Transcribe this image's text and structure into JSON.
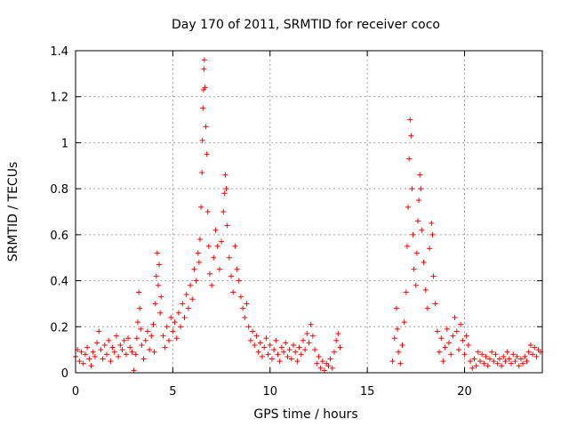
{
  "chart_data": {
    "type": "scatter",
    "title": "Day 170 of 2011, SRMTID for receiver coco",
    "xlabel": "GPS time / hours",
    "ylabel": "SRMTID / TECUs",
    "xlim": [
      0,
      24
    ],
    "ylim": [
      0,
      1.4
    ],
    "x_ticks": [
      0,
      5,
      10,
      15,
      20
    ],
    "x_tick_labels": [
      "0",
      "5",
      "10",
      "15",
      "20"
    ],
    "y_ticks": [
      0,
      0.2,
      0.4,
      0.6,
      0.8,
      1.0,
      1.2,
      1.4
    ],
    "y_tick_labels": [
      "0",
      "0.2",
      "0.4",
      "0.6",
      "0.8",
      "1",
      "1.2",
      "1.4"
    ],
    "grid": true,
    "marker": "+",
    "color": "#ff0000",
    "series": [
      {
        "name": "SRMTID",
        "points": [
          [
            0.0,
            0.07
          ],
          [
            0.1,
            0.1
          ],
          [
            0.2,
            0.05
          ],
          [
            0.3,
            0.09
          ],
          [
            0.4,
            0.04
          ],
          [
            0.5,
            0.08
          ],
          [
            0.6,
            0.11
          ],
          [
            0.7,
            0.06
          ],
          [
            0.8,
            0.03
          ],
          [
            0.9,
            0.09
          ],
          [
            1.0,
            0.07
          ],
          [
            1.1,
            0.13
          ],
          [
            1.2,
            0.18
          ],
          [
            1.3,
            0.1
          ],
          [
            1.4,
            0.06
          ],
          [
            1.5,
            0.12
          ],
          [
            1.6,
            0.08
          ],
          [
            1.7,
            0.14
          ],
          [
            1.8,
            0.05
          ],
          [
            1.9,
            0.11
          ],
          [
            2.0,
            0.09
          ],
          [
            2.1,
            0.16
          ],
          [
            2.2,
            0.07
          ],
          [
            2.3,
            0.12
          ],
          [
            2.4,
            0.1
          ],
          [
            2.5,
            0.14
          ],
          [
            2.6,
            0.08
          ],
          [
            2.7,
            0.15
          ],
          [
            2.8,
            0.11
          ],
          [
            2.9,
            0.09
          ],
          [
            3.0,
            0.01
          ],
          [
            3.1,
            0.08
          ],
          [
            3.15,
            0.15
          ],
          [
            3.2,
            0.22
          ],
          [
            3.25,
            0.35
          ],
          [
            3.3,
            0.28
          ],
          [
            3.35,
            0.19
          ],
          [
            3.4,
            0.12
          ],
          [
            3.5,
            0.06
          ],
          [
            3.6,
            0.14
          ],
          [
            3.7,
            0.18
          ],
          [
            3.8,
            0.1
          ],
          [
            3.9,
            0.16
          ],
          [
            4.0,
            0.21
          ],
          [
            4.05,
            0.09
          ],
          [
            4.1,
            0.3
          ],
          [
            4.15,
            0.42
          ],
          [
            4.2,
            0.52
          ],
          [
            4.25,
            0.38
          ],
          [
            4.3,
            0.47
          ],
          [
            4.35,
            0.26
          ],
          [
            4.4,
            0.33
          ],
          [
            4.5,
            0.16
          ],
          [
            4.6,
            0.11
          ],
          [
            4.7,
            0.2
          ],
          [
            4.8,
            0.14
          ],
          [
            4.9,
            0.24
          ],
          [
            5.0,
            0.18
          ],
          [
            5.1,
            0.22
          ],
          [
            5.2,
            0.15
          ],
          [
            5.3,
            0.26
          ],
          [
            5.4,
            0.2
          ],
          [
            5.5,
            0.3
          ],
          [
            5.6,
            0.24
          ],
          [
            5.7,
            0.34
          ],
          [
            5.8,
            0.28
          ],
          [
            5.9,
            0.38
          ],
          [
            6.0,
            0.32
          ],
          [
            6.1,
            0.45
          ],
          [
            6.2,
            0.4
          ],
          [
            6.3,
            0.52
          ],
          [
            6.35,
            0.48
          ],
          [
            6.4,
            0.58
          ],
          [
            6.45,
            0.72
          ],
          [
            6.5,
            0.87
          ],
          [
            6.52,
            1.01
          ],
          [
            6.55,
            1.15
          ],
          [
            6.58,
            1.23
          ],
          [
            6.6,
            1.32
          ],
          [
            6.62,
            1.36
          ],
          [
            6.65,
            1.24
          ],
          [
            6.7,
            1.07
          ],
          [
            6.75,
            0.95
          ],
          [
            6.8,
            0.7
          ],
          [
            6.85,
            0.55
          ],
          [
            6.9,
            0.43
          ],
          [
            7.0,
            0.38
          ],
          [
            7.1,
            0.5
          ],
          [
            7.2,
            0.62
          ],
          [
            7.3,
            0.55
          ],
          [
            7.4,
            0.45
          ],
          [
            7.5,
            0.57
          ],
          [
            7.6,
            0.7
          ],
          [
            7.65,
            0.78
          ],
          [
            7.7,
            0.86
          ],
          [
            7.75,
            0.8
          ],
          [
            7.8,
            0.64
          ],
          [
            7.9,
            0.5
          ],
          [
            8.0,
            0.42
          ],
          [
            8.1,
            0.35
          ],
          [
            8.2,
            0.55
          ],
          [
            8.3,
            0.45
          ],
          [
            8.4,
            0.4
          ],
          [
            8.5,
            0.33
          ],
          [
            8.6,
            0.28
          ],
          [
            8.7,
            0.24
          ],
          [
            8.8,
            0.3
          ],
          [
            8.9,
            0.2
          ],
          [
            9.0,
            0.14
          ],
          [
            9.1,
            0.18
          ],
          [
            9.2,
            0.12
          ],
          [
            9.3,
            0.16
          ],
          [
            9.4,
            0.09
          ],
          [
            9.5,
            0.13
          ],
          [
            9.6,
            0.07
          ],
          [
            9.7,
            0.11
          ],
          [
            9.8,
            0.15
          ],
          [
            9.9,
            0.08
          ],
          [
            10.0,
            0.12
          ],
          [
            10.1,
            0.06
          ],
          [
            10.2,
            0.1
          ],
          [
            10.3,
            0.14
          ],
          [
            10.4,
            0.08
          ],
          [
            10.5,
            0.05
          ],
          [
            10.6,
            0.11
          ],
          [
            10.7,
            0.09
          ],
          [
            10.8,
            0.13
          ],
          [
            10.9,
            0.07
          ],
          [
            11.0,
            0.1
          ],
          [
            11.1,
            0.06
          ],
          [
            11.2,
            0.12
          ],
          [
            11.3,
            0.09
          ],
          [
            11.4,
            0.05
          ],
          [
            11.5,
            0.11
          ],
          [
            11.6,
            0.08
          ],
          [
            11.7,
            0.14
          ],
          [
            11.8,
            0.1
          ],
          [
            11.9,
            0.17
          ],
          [
            12.0,
            0.13
          ],
          [
            12.1,
            0.21
          ],
          [
            12.2,
            0.16
          ],
          [
            12.3,
            0.1
          ],
          [
            12.4,
            0.04
          ],
          [
            12.5,
            0.07
          ],
          [
            12.6,
            0.02
          ],
          [
            12.7,
            0.05
          ],
          [
            12.8,
            0.01
          ],
          [
            12.9,
            0.04
          ],
          [
            13.0,
            0.03
          ],
          [
            13.1,
            0.06
          ],
          [
            13.2,
            0.02
          ],
          [
            13.3,
            0.09
          ],
          [
            13.4,
            0.14
          ],
          [
            13.5,
            0.17
          ],
          [
            13.6,
            0.11
          ],
          [
            16.3,
            0.05
          ],
          [
            16.4,
            0.15
          ],
          [
            16.5,
            0.28
          ],
          [
            16.55,
            0.19
          ],
          [
            16.6,
            0.09
          ],
          [
            16.7,
            0.04
          ],
          [
            16.8,
            0.12
          ],
          [
            16.9,
            0.22
          ],
          [
            17.0,
            0.35
          ],
          [
            17.05,
            0.55
          ],
          [
            17.1,
            0.72
          ],
          [
            17.15,
            0.93
          ],
          [
            17.2,
            1.1
          ],
          [
            17.25,
            1.03
          ],
          [
            17.3,
            0.8
          ],
          [
            17.35,
            0.6
          ],
          [
            17.4,
            0.45
          ],
          [
            17.5,
            0.38
          ],
          [
            17.55,
            0.52
          ],
          [
            17.6,
            0.66
          ],
          [
            17.65,
            0.75
          ],
          [
            17.7,
            0.86
          ],
          [
            17.75,
            0.8
          ],
          [
            17.8,
            0.62
          ],
          [
            17.9,
            0.48
          ],
          [
            18.0,
            0.36
          ],
          [
            18.1,
            0.28
          ],
          [
            18.2,
            0.54
          ],
          [
            18.3,
            0.65
          ],
          [
            18.35,
            0.6
          ],
          [
            18.4,
            0.42
          ],
          [
            18.5,
            0.3
          ],
          [
            18.6,
            0.18
          ],
          [
            18.7,
            0.09
          ],
          [
            18.8,
            0.15
          ],
          [
            18.9,
            0.05
          ],
          [
            19.0,
            0.11
          ],
          [
            19.1,
            0.19
          ],
          [
            19.2,
            0.13
          ],
          [
            19.3,
            0.08
          ],
          [
            19.4,
            0.16
          ],
          [
            19.5,
            0.24
          ],
          [
            19.6,
            0.18
          ],
          [
            19.7,
            0.1
          ],
          [
            19.8,
            0.21
          ],
          [
            19.9,
            0.14
          ],
          [
            20.0,
            0.08
          ],
          [
            20.1,
            0.16
          ],
          [
            20.2,
            0.12
          ],
          [
            20.3,
            0.05
          ],
          [
            20.4,
            0.02
          ],
          [
            20.5,
            0.06
          ],
          [
            20.6,
            0.03
          ],
          [
            20.7,
            0.09
          ],
          [
            20.8,
            0.05
          ],
          [
            20.9,
            0.08
          ],
          [
            21.0,
            0.04
          ],
          [
            21.1,
            0.07
          ],
          [
            21.2,
            0.03
          ],
          [
            21.3,
            0.06
          ],
          [
            21.4,
            0.09
          ],
          [
            21.5,
            0.05
          ],
          [
            21.6,
            0.08
          ],
          [
            21.7,
            0.04
          ],
          [
            21.8,
            0.06
          ],
          [
            21.9,
            0.03
          ],
          [
            22.0,
            0.07
          ],
          [
            22.1,
            0.05
          ],
          [
            22.2,
            0.09
          ],
          [
            22.3,
            0.06
          ],
          [
            22.4,
            0.04
          ],
          [
            22.5,
            0.08
          ],
          [
            22.6,
            0.05
          ],
          [
            22.7,
            0.07
          ],
          [
            22.8,
            0.03
          ],
          [
            22.9,
            0.06
          ],
          [
            23.0,
            0.04
          ],
          [
            23.1,
            0.07
          ],
          [
            23.2,
            0.05
          ],
          [
            23.3,
            0.09
          ],
          [
            23.4,
            0.12
          ],
          [
            23.5,
            0.08
          ],
          [
            23.6,
            0.11
          ],
          [
            23.7,
            0.07
          ],
          [
            23.8,
            0.1
          ],
          [
            23.9,
            0.09
          ]
        ]
      }
    ]
  }
}
